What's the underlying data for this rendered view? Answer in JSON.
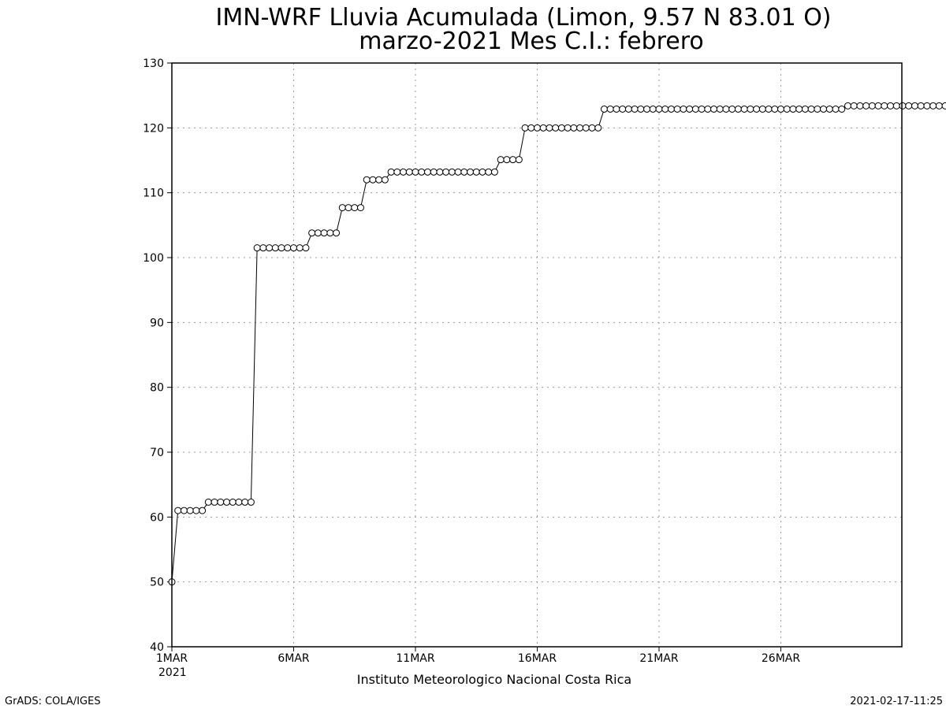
{
  "page": {
    "title_line1": "IMN-WRF  Lluvia Acumulada (Limon, 9.57  N 83.01  O)",
    "title_line2": "marzo-2021 Mes C.I.: febrero",
    "credit": "Instituto Meteorologico Nacional Costa Rica",
    "footer_left": "GrADS: COLA/IGES",
    "footer_right": "2021-02-17-11:25",
    "year_label": "2021"
  },
  "chart_data": {
    "type": "line",
    "title": "IMN-WRF  Lluvia Acumulada (Limon, 9.57  N 83.01  O)",
    "subtitle": "marzo-2021 Mes C.I.: febrero",
    "xlabel": "",
    "ylabel": "",
    "xlim": [
      0,
      30
    ],
    "ylim": [
      40,
      130
    ],
    "yticks": [
      40,
      50,
      60,
      70,
      80,
      90,
      100,
      110,
      120,
      130
    ],
    "xticks": [
      {
        "label": "1MAR",
        "day": 0
      },
      {
        "label": "6MAR",
        "day": 5
      },
      {
        "label": "11MAR",
        "day": 10
      },
      {
        "label": "16MAR",
        "day": 15
      },
      {
        "label": "21MAR",
        "day": 20
      },
      {
        "label": "26MAR",
        "day": 25
      }
    ],
    "grid": true,
    "marker": "open-circle",
    "line_color": "#000000",
    "time_step_hours": 6,
    "series": [
      {
        "values": [
          50,
          61,
          61,
          61,
          61,
          61,
          62.3,
          62.3,
          62.3,
          62.3,
          62.3,
          62.3,
          62.3,
          62.3,
          101.5,
          101.5,
          101.5,
          101.5,
          101.5,
          101.5,
          101.5,
          101.5,
          101.5,
          103.8,
          103.8,
          103.8,
          103.8,
          103.8,
          107.7,
          107.7,
          107.7,
          107.7,
          112,
          112,
          112,
          112,
          113.2,
          113.2,
          113.2,
          113.2,
          113.2,
          113.2,
          113.2,
          113.2,
          113.2,
          113.2,
          113.2,
          113.2,
          113.2,
          113.2,
          113.2,
          113.2,
          113.2,
          113.2,
          115.1,
          115.1,
          115.1,
          115.1,
          120,
          120,
          120,
          120,
          120,
          120,
          120,
          120,
          120,
          120,
          120,
          120,
          120,
          122.9,
          122.9,
          122.9,
          122.9,
          122.9,
          122.9,
          122.9,
          122.9,
          122.9,
          122.9,
          122.9,
          122.9,
          122.9,
          122.9,
          122.9,
          122.9,
          122.9,
          122.9,
          122.9,
          122.9,
          122.9,
          122.9,
          122.9,
          122.9,
          122.9,
          122.9,
          122.9,
          122.9,
          122.9,
          122.9,
          122.9,
          122.9,
          122.9,
          122.9,
          122.9,
          122.9,
          122.9,
          122.9,
          122.9,
          122.9,
          123.4,
          123.4,
          123.4,
          123.4,
          123.4,
          123.4,
          123.4,
          123.4,
          123.4,
          123.4,
          123.4,
          123.4,
          123.4,
          123.4,
          123.4,
          123.4,
          123.4,
          123.4,
          123.4,
          123.4,
          123.4
        ]
      }
    ]
  }
}
